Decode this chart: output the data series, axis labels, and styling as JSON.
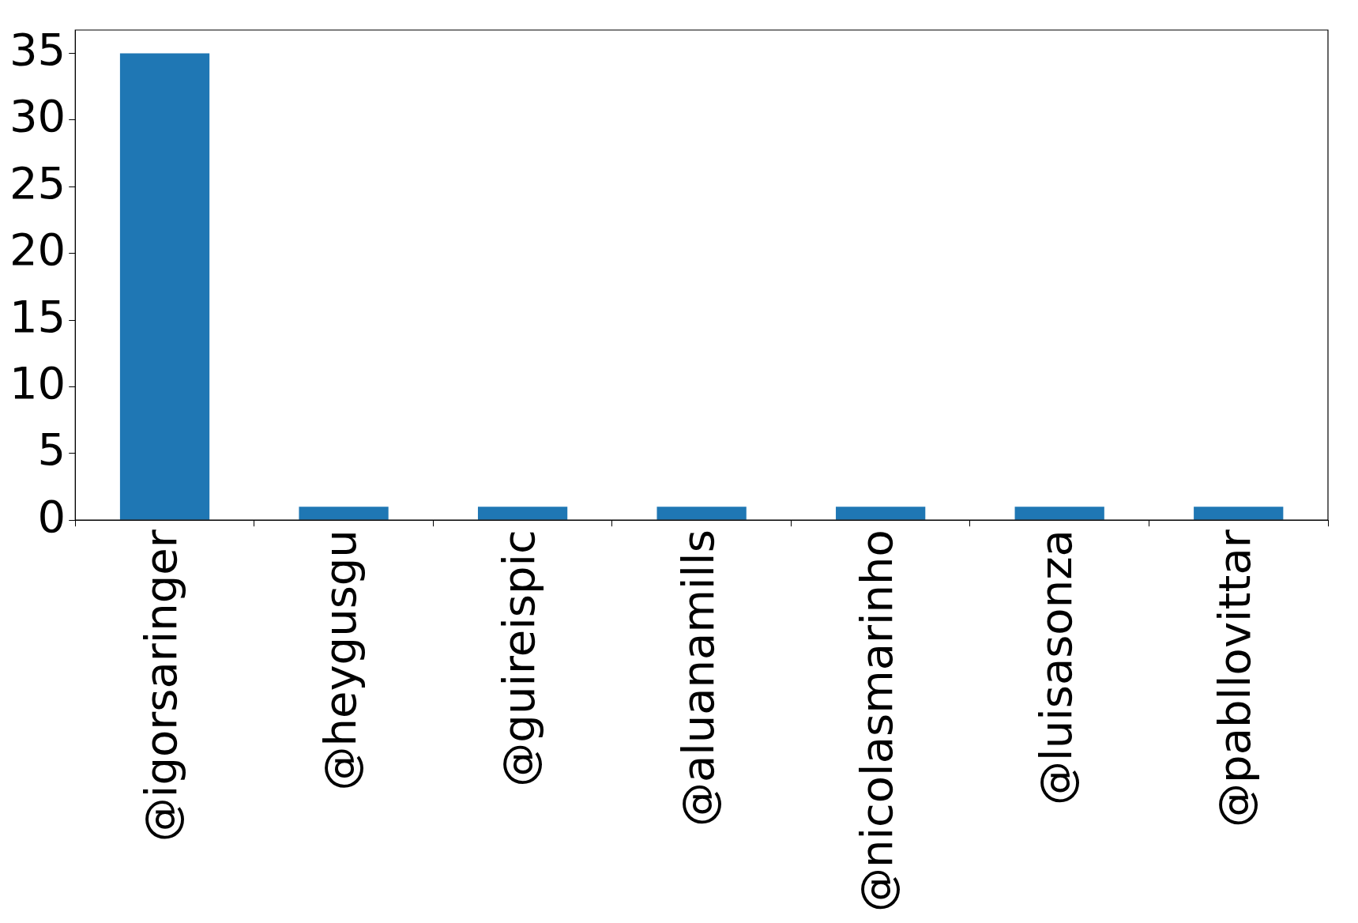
{
  "chart_data": {
    "type": "bar",
    "categories": [
      "@igorsaringer",
      "@heygusgu",
      "@guireispic",
      "@aluanamills",
      "@nicolasmarinho",
      "@luisasonza",
      "@pabllovittar"
    ],
    "values": [
      35,
      1,
      1,
      1,
      1,
      1,
      1
    ],
    "color": "#1f77b4",
    "ylim": [
      0,
      36.75
    ],
    "yticks": [
      0,
      5,
      10,
      15,
      20,
      25,
      30,
      35
    ],
    "grid": false,
    "legend": false
  }
}
